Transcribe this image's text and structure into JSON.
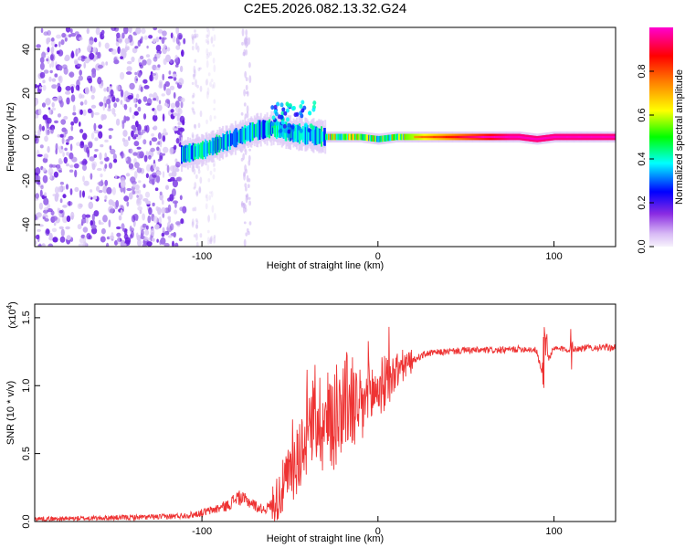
{
  "chart_data": [
    {
      "type": "heatmap",
      "title": "C2E5.2026.082.13.32.G24",
      "xlabel": "Height of straight line (km)",
      "ylabel": "Frequency (Hz)",
      "xlim": [
        -195,
        135
      ],
      "ylim": [
        -50,
        50
      ],
      "xticks": [
        -100,
        0,
        100
      ],
      "yticks": [
        -40,
        -20,
        0,
        20,
        40
      ],
      "colorbar": {
        "label": "Normalized spectral amplitude",
        "range": [
          0,
          1
        ],
        "ticks": [
          "0.0",
          "0.2",
          "0.4",
          "0.6",
          "0.8"
        ],
        "colors": [
          "#f3ecfb",
          "#8a2be2",
          "#0000ff",
          "#00ffff",
          "#00ff00",
          "#ffff00",
          "#ff8000",
          "#ff0000",
          "#ff00c8"
        ]
      },
      "ridge": {
        "x": [
          -112,
          -100,
          -90,
          -80,
          -70,
          -60,
          -50,
          -40,
          -30,
          -20,
          -10,
          0,
          10,
          20,
          40,
          60,
          80,
          90,
          100,
          120,
          135
        ],
        "y": [
          -8,
          -6,
          -3,
          0,
          3,
          4,
          2,
          1,
          0,
          0,
          0,
          -1,
          0,
          0,
          0,
          0,
          0,
          -1,
          0,
          0,
          0
        ]
      }
    },
    {
      "type": "line",
      "xlabel": "Height of straight line (km)",
      "ylabel": "SNR (10 * v/v)",
      "scale_label": "(x10",
      "scale_exp": "4",
      "scale_close": ")",
      "xlim": [
        -195,
        135
      ],
      "ylim": [
        0,
        1.6
      ],
      "xticks": [
        -100,
        0,
        100
      ],
      "yticks": [
        0,
        0.5,
        1.0,
        1.5
      ],
      "ytick_labels": [
        "0.0",
        "0.5",
        "1.0",
        "1.5"
      ],
      "color": "#ee3333",
      "series": [
        {
          "name": "SNR",
          "x": [
            -195,
            -180,
            -160,
            -140,
            -120,
            -105,
            -95,
            -85,
            -80,
            -76,
            -72,
            -68,
            -64,
            -58,
            -52,
            -46,
            -42,
            -38,
            -34,
            -30,
            -26,
            -22,
            -18,
            -14,
            -10,
            -6,
            -2,
            2,
            6,
            10,
            14,
            18,
            22,
            26,
            30,
            40,
            50,
            60,
            70,
            80,
            85,
            90,
            93,
            95,
            97,
            100,
            105,
            110,
            120,
            135
          ],
          "y": [
            0.02,
            0.02,
            0.025,
            0.03,
            0.035,
            0.05,
            0.08,
            0.12,
            0.18,
            0.16,
            0.14,
            0.1,
            0.09,
            0.15,
            0.3,
            0.45,
            0.6,
            0.72,
            0.78,
            0.7,
            0.78,
            0.84,
            0.9,
            0.85,
            0.8,
            0.92,
            0.95,
            1.0,
            1.04,
            1.1,
            1.14,
            1.17,
            1.2,
            1.23,
            1.24,
            1.25,
            1.26,
            1.26,
            1.26,
            1.27,
            1.27,
            1.26,
            1.1,
            1.3,
            1.2,
            1.27,
            1.27,
            1.27,
            1.28,
            1.28
          ]
        }
      ]
    }
  ]
}
